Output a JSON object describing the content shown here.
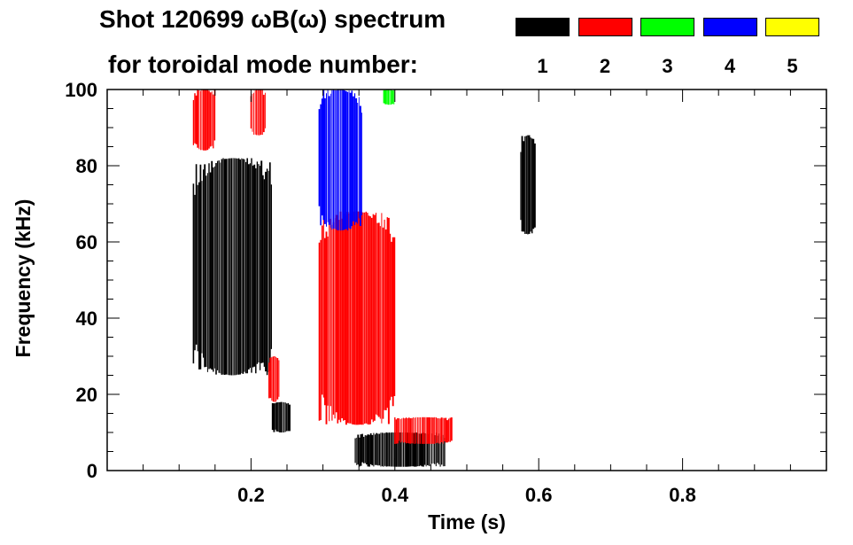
{
  "chart_data": {
    "type": "heatmap",
    "title_line1": "Shot 120699 ωB(ω) spectrum",
    "title_line2": "for toroidal mode number:",
    "xlabel": "Time (s)",
    "ylabel": "Frequency (kHz)",
    "xlim": [
      0.0,
      1.0
    ],
    "ylim": [
      0,
      100
    ],
    "x_ticks": [
      {
        "value": 0.2,
        "label": "0.2"
      },
      {
        "value": 0.4,
        "label": "0.4"
      },
      {
        "value": 0.6,
        "label": "0.6"
      },
      {
        "value": 0.8,
        "label": "0.8"
      }
    ],
    "y_ticks": [
      {
        "value": 0,
        "label": "0"
      },
      {
        "value": 20,
        "label": "20"
      },
      {
        "value": 40,
        "label": "40"
      },
      {
        "value": 60,
        "label": "60"
      },
      {
        "value": 80,
        "label": "80"
      },
      {
        "value": 100,
        "label": "100"
      }
    ],
    "legend": [
      {
        "label": "1",
        "color": "#000000"
      },
      {
        "label": "2",
        "color": "#ff0000"
      },
      {
        "label": "3",
        "color": "#00ff00"
      },
      {
        "label": "4",
        "color": "#0000ff"
      },
      {
        "label": "5",
        "color": "#ffff00"
      }
    ],
    "series": [
      {
        "mode": 1,
        "color": "#000000",
        "regions": [
          {
            "t0": 0.12,
            "t1": 0.23,
            "f0": 25,
            "f1": 82
          },
          {
            "t0": 0.23,
            "t1": 0.255,
            "f0": 10,
            "f1": 18
          },
          {
            "t0": 0.345,
            "t1": 0.47,
            "f0": 1,
            "f1": 10
          },
          {
            "t0": 0.575,
            "t1": 0.595,
            "f0": 62,
            "f1": 88
          }
        ]
      },
      {
        "mode": 2,
        "color": "#ff0000",
        "regions": [
          {
            "t0": 0.12,
            "t1": 0.15,
            "f0": 84,
            "f1": 100
          },
          {
            "t0": 0.2,
            "t1": 0.22,
            "f0": 88,
            "f1": 100
          },
          {
            "t0": 0.225,
            "t1": 0.24,
            "f0": 18,
            "f1": 30
          },
          {
            "t0": 0.295,
            "t1": 0.4,
            "f0": 12,
            "f1": 68
          },
          {
            "t0": 0.4,
            "t1": 0.48,
            "f0": 7,
            "f1": 14
          }
        ]
      },
      {
        "mode": 3,
        "color": "#00ff00",
        "regions": [
          {
            "t0": 0.385,
            "t1": 0.4,
            "f0": 96,
            "f1": 100
          }
        ]
      },
      {
        "mode": 4,
        "color": "#0000ff",
        "regions": [
          {
            "t0": 0.295,
            "t1": 0.355,
            "f0": 63,
            "f1": 100
          }
        ]
      }
    ]
  }
}
